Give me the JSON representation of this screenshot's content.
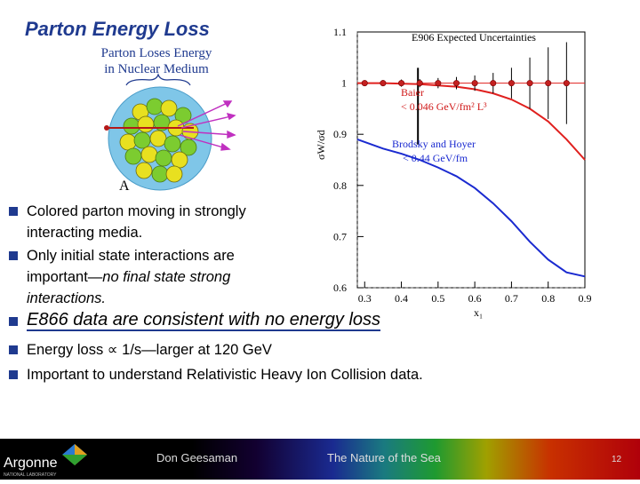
{
  "slide": {
    "title": "Parton Energy Loss",
    "diagram": {
      "caption_line1": "Parton Loses Energy",
      "caption_line2": "in Nuclear Medium",
      "nucleus_label": "A"
    },
    "bullets": [
      {
        "text_line1": "Colored parton moving in strongly",
        "text_line2": "interacting media."
      },
      {
        "text_line1": "Only initial state interactions are",
        "text_line2_a": "important—",
        "text_line2_b": "no final state strong",
        "text_line3": "interactions."
      }
    ],
    "headline": "E866 data are consistent with no energy loss",
    "bullets2": [
      "Energy loss ∝ 1/s—larger at 120 GeV",
      "Important to understand Relativistic Heavy Ion Collision data."
    ],
    "footer": {
      "logo_text": "Argonne",
      "logo_sub": "NATIONAL LABORATORY",
      "author": "Don Geesaman",
      "talk": "The Nature of the Sea",
      "page": "12"
    }
  },
  "chart_data": {
    "type": "line",
    "title": "E906 Expected Uncertainties",
    "xlabel": "x₁",
    "ylabel": "σW/σd",
    "xlim": [
      0.28,
      0.9
    ],
    "ylim": [
      0.6,
      1.1
    ],
    "xticks": [
      "0.3",
      "0.4",
      "0.5",
      "0.6",
      "0.7",
      "0.8",
      "0.9"
    ],
    "yticks": [
      "0.6",
      "0.7",
      "0.8",
      "0.9",
      "1",
      "1.1"
    ],
    "series": [
      {
        "name": "Baier < 0.046 GeV/fm² L³",
        "color": "#e0201e",
        "x": [
          0.28,
          0.35,
          0.45,
          0.55,
          0.6,
          0.65,
          0.7,
          0.75,
          0.8,
          0.85,
          0.9
        ],
        "y": [
          1.0,
          1.0,
          0.998,
          0.993,
          0.988,
          0.98,
          0.968,
          0.95,
          0.925,
          0.89,
          0.85
        ]
      },
      {
        "name": "Brodsky and Hoyer < 0.44 GeV/fm",
        "color": "#1a2ad0",
        "x": [
          0.28,
          0.35,
          0.4,
          0.45,
          0.5,
          0.55,
          0.6,
          0.65,
          0.7,
          0.75,
          0.8,
          0.85,
          0.9
        ],
        "y": [
          0.89,
          0.872,
          0.862,
          0.85,
          0.835,
          0.818,
          0.795,
          0.765,
          0.73,
          0.69,
          0.655,
          0.63,
          0.622
        ]
      }
    ],
    "points": {
      "name": "E906 expected",
      "color": "#c42020",
      "x": [
        0.3,
        0.35,
        0.4,
        0.45,
        0.5,
        0.55,
        0.6,
        0.65,
        0.7,
        0.75,
        0.8,
        0.85
      ],
      "y": [
        1.0,
        1.0,
        1.0,
        1.0,
        1.0,
        1.0,
        1.0,
        1.0,
        1.0,
        1.0,
        1.0,
        1.0
      ],
      "err": [
        0.005,
        0.006,
        0.007,
        0.008,
        0.01,
        0.012,
        0.015,
        0.02,
        0.03,
        0.05,
        0.07,
        0.08
      ]
    }
  }
}
